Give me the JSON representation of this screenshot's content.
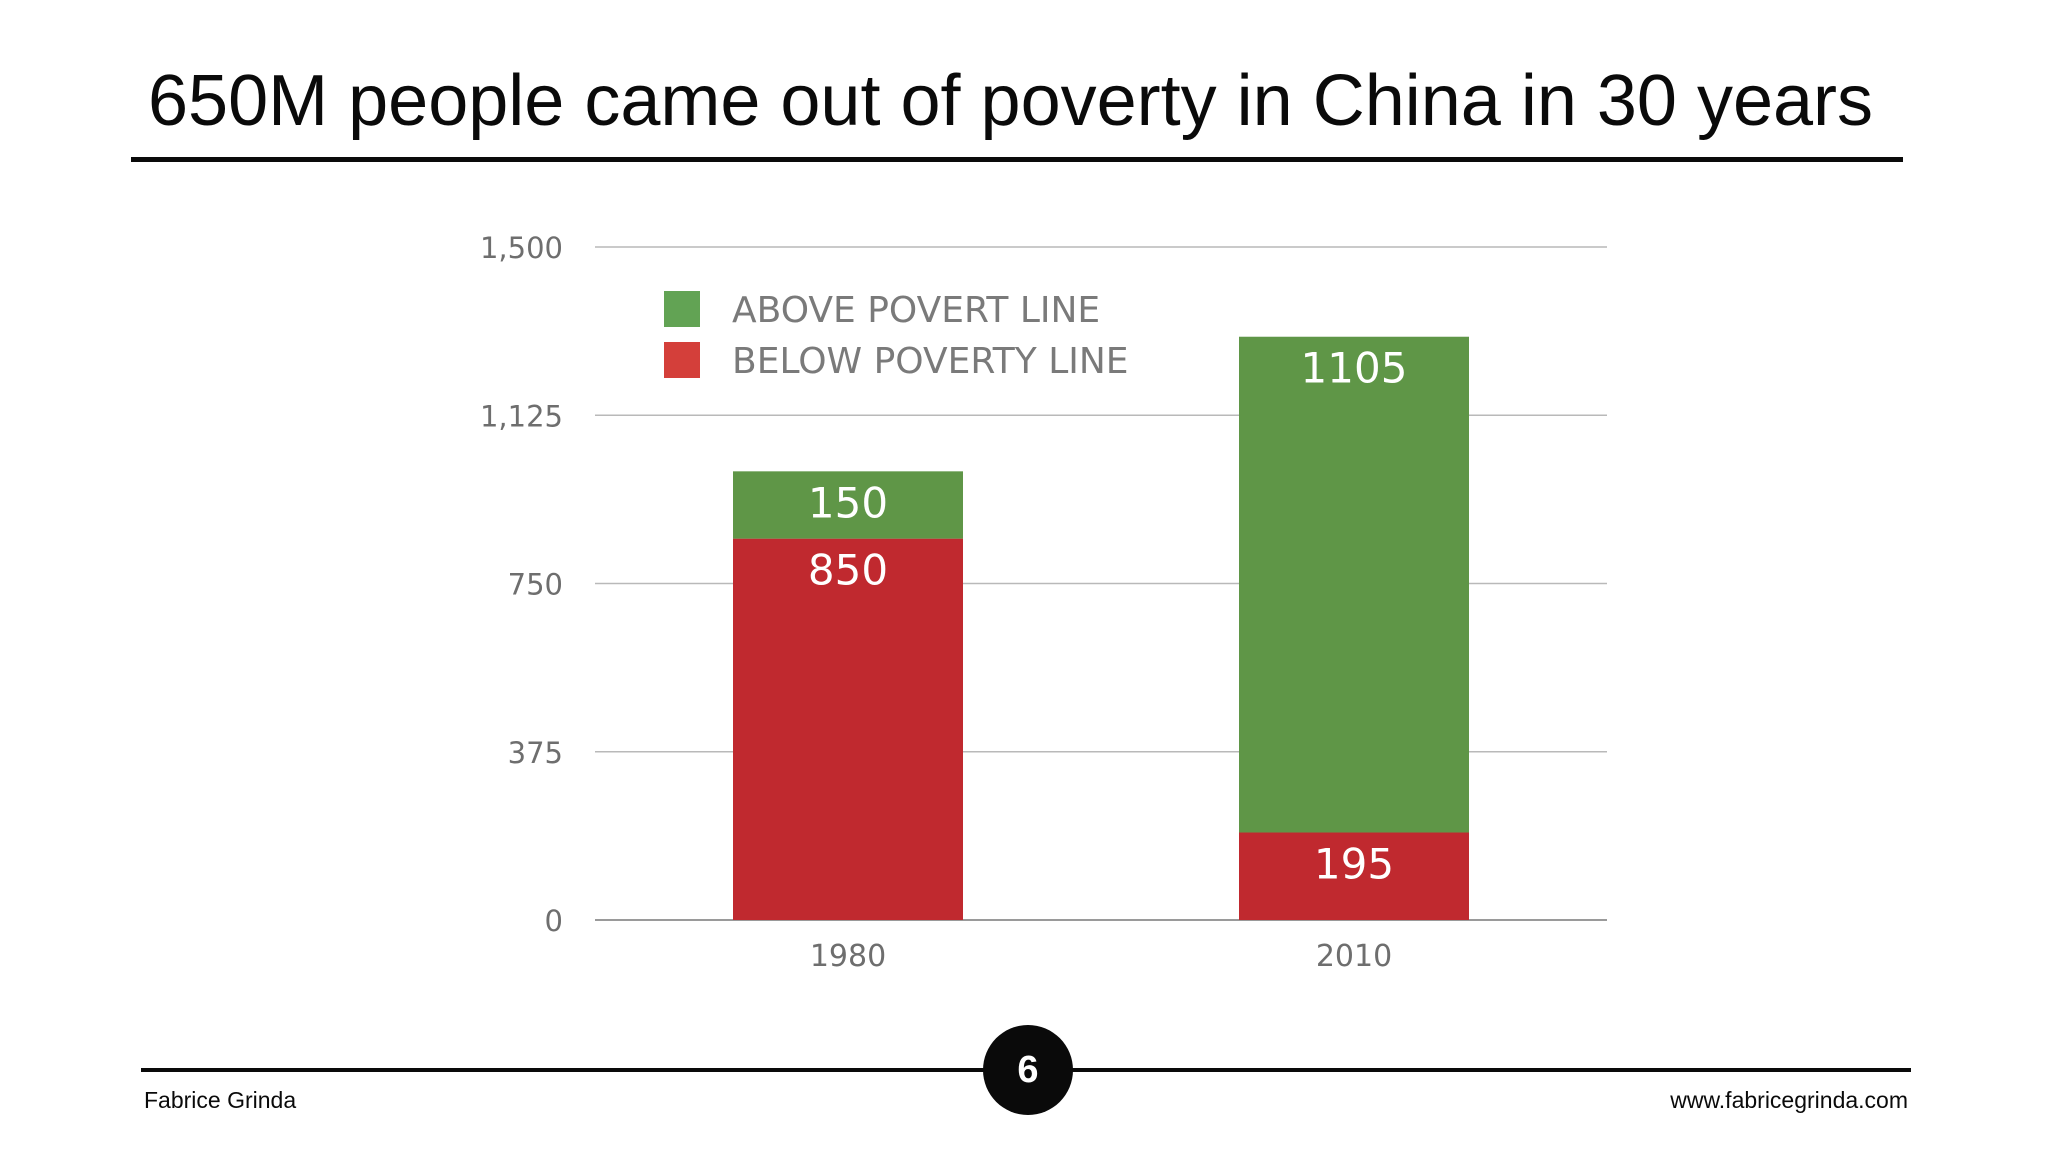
{
  "slide": {
    "title": "650M people came out of poverty in China in 30 years",
    "page_number": "6",
    "author": "Fabrice Grinda",
    "website": "www.fabricegrinda.com"
  },
  "chart_data": {
    "type": "bar",
    "stacked": true,
    "categories": [
      "1980",
      "2010"
    ],
    "series": [
      {
        "name": "BELOW POVERTY LINE",
        "values": [
          850,
          195
        ],
        "color": "#c0292f"
      },
      {
        "name": "ABOVE POVERT LINE",
        "values": [
          150,
          1105
        ],
        "color": "#5f9647"
      }
    ],
    "legend": [
      {
        "label": "ABOVE POVERT LINE",
        "color": "#62a354"
      },
      {
        "label": "BELOW POVERTY LINE",
        "color": "#d43f3a"
      }
    ],
    "legend_position": "top-left",
    "ylim": [
      0,
      1500
    ],
    "yticks": [
      0,
      375,
      750,
      1125,
      1500
    ],
    "ytick_labels": [
      "0",
      "375",
      "750",
      "1,125",
      "1,500"
    ],
    "grid": true,
    "xlabel": "",
    "ylabel": ""
  }
}
